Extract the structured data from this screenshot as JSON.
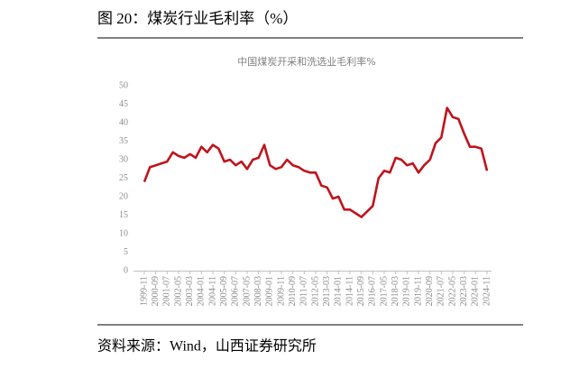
{
  "header": "图 20：煤炭行业毛利率（%）",
  "source": "资料来源：Wind，山西证券研究所",
  "chart_data": {
    "type": "line",
    "title": "中国煤炭开采和洗选业毛利率%",
    "categories": [
      "1999-11",
      null,
      "2000-09",
      null,
      "2001-07",
      null,
      "2002-05",
      null,
      "2003-03",
      null,
      "2004-01",
      null,
      "2004-11",
      null,
      "2005-09",
      null,
      "2006-07",
      null,
      "2007-05",
      null,
      "2008-03",
      null,
      "2009-01",
      null,
      "2009-11",
      null,
      "2010-09",
      null,
      "2011-07",
      null,
      "2012-05",
      null,
      "2013-03",
      null,
      "2014-01",
      null,
      "2014-11",
      null,
      "2015-09",
      null,
      "2016-07",
      null,
      "2017-05",
      null,
      "2018-03",
      null,
      "2019-01",
      null,
      "2019-11",
      null,
      "2020-09",
      null,
      "2021-07",
      null,
      "2022-05",
      null,
      "2023-03",
      null,
      "2024-01",
      null,
      "2024-11"
    ],
    "series": [
      {
        "name": "毛利率",
        "color": "#c0141c",
        "values": [
          24,
          28,
          28.5,
          29,
          29.5,
          32,
          31,
          30.5,
          31.5,
          30.5,
          33.5,
          32,
          34,
          33,
          29.5,
          30,
          28.5,
          29.5,
          27.5,
          30,
          30.5,
          34,
          28.5,
          27.5,
          28,
          30,
          28.5,
          28,
          27,
          26.5,
          26.5,
          23,
          22.5,
          19.5,
          20,
          16.5,
          16.5,
          15.5,
          14.5,
          16,
          17.5,
          25,
          27,
          26.5,
          30.5,
          30,
          28.5,
          29,
          26.5,
          28.5,
          30,
          34.5,
          36,
          44,
          41.5,
          41,
          37,
          33.5,
          33.5,
          33,
          27
        ]
      }
    ],
    "ylim": [
      0,
      50
    ],
    "yticks": [
      0,
      5,
      10,
      15,
      20,
      25,
      30,
      35,
      40,
      45,
      50
    ]
  }
}
